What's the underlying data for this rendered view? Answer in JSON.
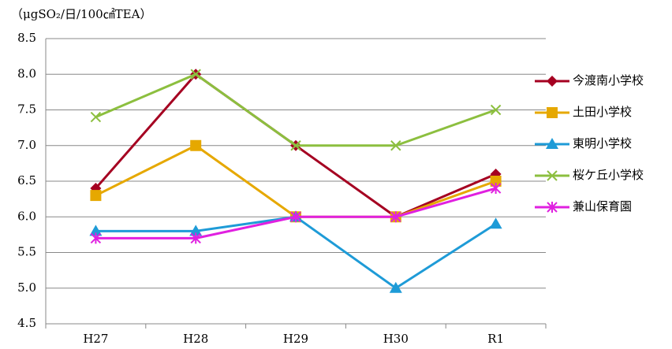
{
  "chart_data": {
    "type": "line",
    "subtitle": "（μgSO₂/日/100㎠TEA）",
    "categories": [
      "H27",
      "H28",
      "H29",
      "H30",
      "R1"
    ],
    "series": [
      {
        "name": "今渡南小学校",
        "color": "#a50021",
        "marker": "diamond",
        "values": [
          6.4,
          8.0,
          7.0,
          6.0,
          6.6
        ]
      },
      {
        "name": "土田小学校",
        "color": "#e6a800",
        "marker": "square",
        "values": [
          6.3,
          7.0,
          6.0,
          6.0,
          6.5
        ]
      },
      {
        "name": "東明小学校",
        "color": "#1e9bd7",
        "marker": "triangle",
        "values": [
          5.8,
          5.8,
          6.0,
          5.0,
          5.9
        ]
      },
      {
        "name": "桜ケ丘小学校",
        "color": "#8cbf3f",
        "marker": "x",
        "values": [
          7.4,
          8.0,
          7.0,
          7.0,
          7.5
        ]
      },
      {
        "name": "兼山保育園",
        "color": "#e020e0",
        "marker": "star",
        "values": [
          5.7,
          5.7,
          6.0,
          6.0,
          6.4
        ]
      }
    ],
    "ylim": [
      4.5,
      8.5
    ],
    "yticks": [
      4.5,
      {
        "value": 5,
        "label": "5.0"
      },
      5.5,
      {
        "value": 6,
        "label": "6.0"
      },
      6.5,
      {
        "value": 7,
        "label": "7.0"
      },
      7.5,
      {
        "value": 8,
        "label": "8.0"
      },
      8.5
    ],
    "grid": true,
    "legend": "right"
  }
}
